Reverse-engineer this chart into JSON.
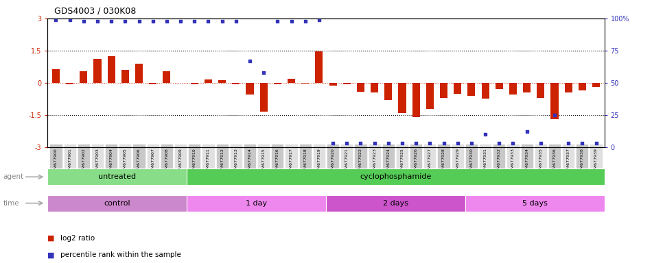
{
  "title": "GDS4003 / 030K08",
  "samples": [
    "GSM677900",
    "GSM677901",
    "GSM677902",
    "GSM677903",
    "GSM677904",
    "GSM677905",
    "GSM677906",
    "GSM677907",
    "GSM677908",
    "GSM677909",
    "GSM677910",
    "GSM677911",
    "GSM677912",
    "GSM677913",
    "GSM677914",
    "GSM677915",
    "GSM677916",
    "GSM677917",
    "GSM677918",
    "GSM677919",
    "GSM677920",
    "GSM677921",
    "GSM677922",
    "GSM677923",
    "GSM677924",
    "GSM677925",
    "GSM677926",
    "GSM677927",
    "GSM677928",
    "GSM677929",
    "GSM677930",
    "GSM677931",
    "GSM677932",
    "GSM677933",
    "GSM677934",
    "GSM677935",
    "GSM677936",
    "GSM677937",
    "GSM677938",
    "GSM677939"
  ],
  "log2_ratio": [
    0.65,
    -0.05,
    0.55,
    1.1,
    1.25,
    0.6,
    0.9,
    -0.07,
    0.55,
    0.0,
    -0.05,
    0.15,
    0.12,
    -0.07,
    -0.55,
    -1.35,
    -0.05,
    0.18,
    -0.03,
    1.45,
    -0.12,
    -0.05,
    -0.4,
    -0.45,
    -0.8,
    -1.4,
    -1.6,
    -1.2,
    -0.7,
    -0.5,
    -0.6,
    -0.75,
    -0.3,
    -0.55,
    -0.45,
    -0.7,
    -1.7,
    -0.45,
    -0.35,
    -0.2
  ],
  "percentile": [
    99,
    99,
    98,
    98,
    98,
    98,
    98,
    98,
    98,
    98,
    98,
    98,
    98,
    98,
    67,
    58,
    98,
    98,
    98,
    99,
    3,
    3,
    3,
    3,
    3,
    3,
    3,
    3,
    3,
    3,
    3,
    10,
    3,
    3,
    12,
    3,
    25,
    3,
    3,
    3
  ],
  "bar_color": "#cc2200",
  "square_color": "#3333bb",
  "ylim_left": [
    -3,
    3
  ],
  "ylim_right": [
    0,
    100
  ],
  "agent_groups": [
    {
      "label": "untreated",
      "start": 0,
      "end": 9,
      "color": "#88dd88"
    },
    {
      "label": "cyclophosphamide",
      "start": 10,
      "end": 39,
      "color": "#55cc55"
    }
  ],
  "time_groups": [
    {
      "label": "control",
      "start": 0,
      "end": 9,
      "color": "#cc88cc"
    },
    {
      "label": "1 day",
      "start": 10,
      "end": 19,
      "color": "#ee88ee"
    },
    {
      "label": "2 days",
      "start": 20,
      "end": 29,
      "color": "#cc55cc"
    },
    {
      "label": "5 days",
      "start": 30,
      "end": 39,
      "color": "#ee88ee"
    }
  ],
  "legend_red_label": "log2 ratio",
  "legend_blue_label": "percentile rank within the sample"
}
